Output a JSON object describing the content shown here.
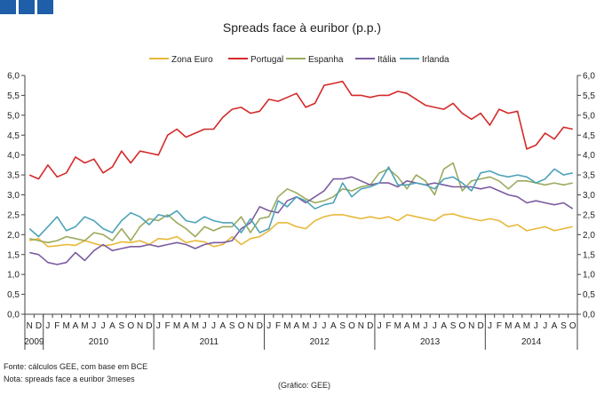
{
  "header": {
    "icons": [
      "square-icon",
      "square-icon",
      "square-icon"
    ]
  },
  "chart_data": {
    "type": "line",
    "title": "Spreads face à euribor (p.p.)",
    "ylim": [
      0,
      6
    ],
    "yticks": [
      "0,0",
      "0,5",
      "1,0",
      "1,5",
      "2,0",
      "2,5",
      "3,0",
      "3,5",
      "4,0",
      "4,5",
      "5,0",
      "5,5",
      "6,0"
    ],
    "month_labels": [
      "N",
      "D",
      "J",
      "F",
      "M",
      "A",
      "M",
      "J",
      "J",
      "A",
      "S",
      "O",
      "N",
      "D",
      "J",
      "F",
      "M",
      "A",
      "M",
      "J",
      "J",
      "A",
      "S",
      "O",
      "N",
      "D",
      "J",
      "F",
      "M",
      "A",
      "M",
      "J",
      "J",
      "A",
      "S",
      "O",
      "N",
      "D",
      "J",
      "F",
      "M",
      "A",
      "M",
      "J",
      "J",
      "A",
      "S",
      "O",
      "N",
      "D",
      "J",
      "F",
      "M",
      "A",
      "M",
      "J",
      "J",
      "A",
      "S",
      "O"
    ],
    "years": [
      {
        "label": "2009",
        "start": 0,
        "end": 2
      },
      {
        "label": "2010",
        "start": 2,
        "end": 14
      },
      {
        "label": "2011",
        "start": 14,
        "end": 26
      },
      {
        "label": "2012",
        "start": 26,
        "end": 38
      },
      {
        "label": "2013",
        "start": 38,
        "end": 50
      },
      {
        "label": "2014",
        "start": 50,
        "end": 60
      }
    ],
    "legend": [
      "Zona Euro",
      "Portugal",
      "Espanha",
      "Itália",
      "Irlanda"
    ],
    "series": [
      {
        "name": "Zona Euro",
        "color": "#e8b83a",
        "values": [
          1.85,
          1.9,
          1.7,
          1.72,
          1.75,
          1.73,
          1.85,
          1.78,
          1.72,
          1.75,
          1.82,
          1.8,
          1.85,
          1.75,
          1.9,
          1.88,
          1.95,
          1.8,
          1.85,
          1.82,
          1.7,
          1.75,
          1.95,
          1.75,
          1.9,
          1.95,
          2.1,
          2.3,
          2.3,
          2.2,
          2.15,
          2.35,
          2.45,
          2.5,
          2.5,
          2.45,
          2.4,
          2.45,
          2.4,
          2.45,
          2.35,
          2.5,
          2.45,
          2.4,
          2.35,
          2.5,
          2.52,
          2.45,
          2.4,
          2.35,
          2.4,
          2.35,
          2.2,
          2.25,
          2.1,
          2.15,
          2.2,
          2.1,
          2.15,
          2.2
        ]
      },
      {
        "name": "Portugal",
        "color": "#d42a2a",
        "values": [
          3.5,
          3.4,
          3.75,
          3.45,
          3.55,
          3.95,
          3.8,
          3.9,
          3.55,
          3.7,
          4.1,
          3.8,
          4.1,
          4.05,
          4.0,
          4.5,
          4.65,
          4.45,
          4.55,
          4.65,
          4.65,
          4.95,
          5.15,
          5.2,
          5.05,
          5.1,
          5.4,
          5.35,
          5.45,
          5.55,
          5.2,
          5.3,
          5.75,
          5.8,
          5.85,
          5.5,
          5.5,
          5.45,
          5.5,
          5.5,
          5.6,
          5.55,
          5.4,
          5.25,
          5.2,
          5.15,
          5.3,
          5.05,
          4.9,
          5.05,
          4.75,
          5.15,
          5.05,
          5.1,
          4.15,
          4.25,
          4.55,
          4.4,
          4.7,
          4.65
        ]
      },
      {
        "name": "Espanha",
        "color": "#9aab5d",
        "values": [
          1.9,
          1.85,
          1.8,
          1.85,
          1.95,
          1.9,
          1.85,
          2.05,
          2.0,
          1.85,
          2.15,
          1.85,
          2.2,
          2.4,
          2.35,
          2.5,
          2.3,
          2.15,
          1.95,
          2.2,
          2.1,
          2.2,
          2.2,
          2.45,
          2.05,
          2.4,
          2.45,
          2.95,
          3.15,
          3.05,
          2.9,
          2.8,
          2.85,
          2.95,
          3.15,
          3.1,
          3.2,
          3.25,
          3.55,
          3.65,
          3.45,
          3.15,
          3.5,
          3.35,
          3.0,
          3.65,
          3.8,
          3.1,
          3.35,
          3.4,
          3.45,
          3.35,
          3.15,
          3.35,
          3.35,
          3.3,
          3.25,
          3.3,
          3.25,
          3.3
        ]
      },
      {
        "name": "Itália",
        "color": "#7b5ca0",
        "values": [
          1.55,
          1.5,
          1.3,
          1.25,
          1.3,
          1.55,
          1.35,
          1.6,
          1.75,
          1.6,
          1.65,
          1.7,
          1.7,
          1.75,
          1.7,
          1.75,
          1.8,
          1.75,
          1.65,
          1.75,
          1.8,
          1.8,
          1.85,
          2.15,
          2.3,
          2.7,
          2.6,
          2.55,
          2.85,
          2.95,
          2.8,
          2.95,
          3.1,
          3.4,
          3.4,
          3.45,
          3.35,
          3.25,
          3.3,
          3.3,
          3.2,
          3.35,
          3.3,
          3.25,
          3.3,
          3.25,
          3.2,
          3.2,
          3.2,
          3.15,
          3.2,
          3.1,
          3.0,
          2.95,
          2.8,
          2.85,
          2.8,
          2.75,
          2.8,
          2.65
        ]
      },
      {
        "name": "Irlanda",
        "color": "#4ea3b8",
        "values": [
          2.15,
          1.95,
          2.2,
          2.45,
          2.1,
          2.2,
          2.45,
          2.35,
          2.15,
          2.05,
          2.35,
          2.55,
          2.45,
          2.25,
          2.5,
          2.45,
          2.6,
          2.35,
          2.3,
          2.45,
          2.35,
          2.3,
          2.3,
          2.05,
          2.4,
          2.05,
          2.15,
          2.85,
          2.7,
          2.95,
          2.85,
          2.65,
          2.75,
          2.8,
          3.3,
          2.95,
          3.15,
          3.2,
          3.3,
          3.7,
          3.25,
          3.25,
          3.3,
          3.25,
          3.15,
          3.4,
          3.45,
          3.3,
          3.1,
          3.55,
          3.6,
          3.5,
          3.45,
          3.5,
          3.45,
          3.3,
          3.4,
          3.65,
          3.5,
          3.55
        ]
      }
    ]
  },
  "notes": {
    "source": "Fonte: cálculos GEE, com base em BCE",
    "note": "Nota: spreads face a euribor 3meses",
    "credit": "(Gráfico: GEE)"
  }
}
